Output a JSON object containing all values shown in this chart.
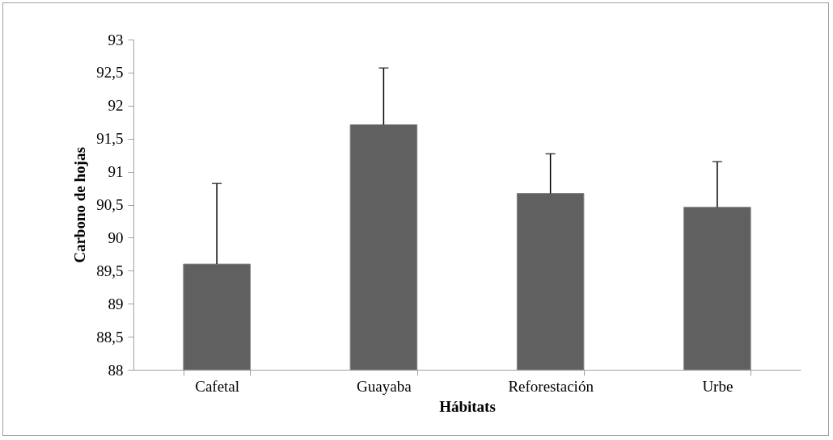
{
  "chart_data": {
    "type": "bar",
    "xlabel": "Hábitats",
    "ylabel": "Carbono de hojas",
    "categories": [
      "Cafetal",
      "Guayaba",
      "Reforestación",
      "Urbe"
    ],
    "values": [
      89.6,
      91.71,
      90.67,
      90.46
    ],
    "errors": [
      [
        89.6,
        90.82
      ],
      [
        91.71,
        92.57
      ],
      [
        90.67,
        91.27
      ],
      [
        90.46,
        91.15
      ]
    ],
    "color": "#606060",
    "ylim": [
      88,
      93
    ],
    "yticks": [
      88,
      {
        "value": 88.5,
        "label": "88,5"
      },
      89,
      {
        "value": 89.5,
        "label": "89,5"
      },
      90,
      {
        "value": 90.5,
        "label": "90,5"
      },
      91,
      {
        "value": 91.5,
        "label": "91,5"
      },
      92,
      {
        "value": 92.5,
        "label": "92,5"
      },
      93
    ],
    "grid": false
  }
}
